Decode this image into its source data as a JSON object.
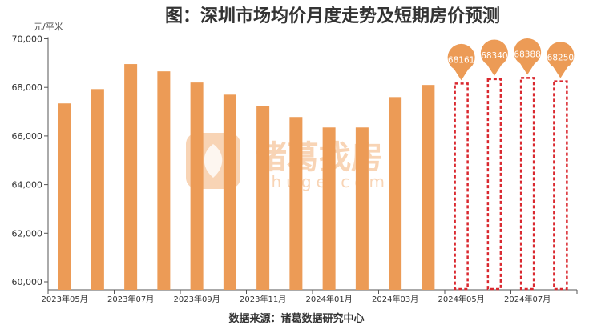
{
  "chart_data": {
    "type": "bar",
    "title": "图：深圳市场均价月度走势及短期房价预测",
    "ylabel": "元/平米",
    "source": "数据来源：诸葛数据研究中心",
    "watermark": {
      "name": "诸葛找房",
      "url_text": "zhuge.com"
    },
    "ylim": [
      59700,
      70000
    ],
    "yticks": [
      "60,000",
      "62,000",
      "64,000",
      "66,000",
      "68,000",
      "70,000"
    ],
    "ytick_values": [
      60000,
      62000,
      64000,
      66000,
      68000,
      70000
    ],
    "categories": [
      "2023-05",
      "2023-06",
      "2023-07",
      "2023-08",
      "2023-09",
      "2023-10",
      "2023-11",
      "2023-12",
      "2024-01",
      "2024-02",
      "2024-03",
      "2024-04",
      "2024-05",
      "2024-06",
      "2024-07",
      "2024-08"
    ],
    "xtick_labels": [
      "2023年05月",
      "2023年07月",
      "2023年09月",
      "2023年11月",
      "2024年01月",
      "2024年03月",
      "2024年05月",
      "2024年07月"
    ],
    "series": [
      {
        "type": "actual",
        "values": [
          67340,
          67930,
          68960,
          68660,
          68200,
          67700,
          67240,
          66780,
          66350,
          66350,
          67600,
          68100,
          null,
          null,
          null,
          null
        ],
        "color": "#EC9B56"
      },
      {
        "type": "forecast",
        "values": [
          null,
          null,
          null,
          null,
          null,
          null,
          null,
          null,
          null,
          null,
          null,
          null,
          68161,
          68340,
          68388,
          68250
        ],
        "color": "#D9282F",
        "labels": [
          "68161",
          "68340",
          "68388",
          "68250"
        ]
      }
    ],
    "grid": false
  }
}
